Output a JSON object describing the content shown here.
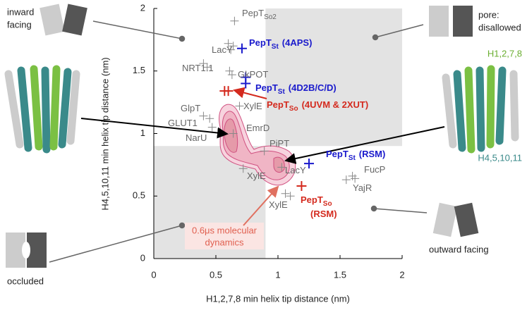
{
  "chart_data": {
    "type": "scatter",
    "xlabel": "H1,2,7,8 min helix tip distance (nm)",
    "ylabel": "H4,5,10,11 min helix tip distance (nm)",
    "xlim": [
      0,
      2
    ],
    "ylim": [
      0,
      2
    ],
    "xticks": [
      0,
      0.5,
      1,
      1.5,
      2
    ],
    "yticks": [
      0,
      0.5,
      1,
      1.5,
      2
    ],
    "shaded_regions": [
      {
        "x": [
          0.9,
          2
        ],
        "y": [
          0.9,
          2
        ]
      },
      {
        "x": [
          0,
          0.9
        ],
        "y": [
          0,
          0.9
        ]
      }
    ],
    "series": [
      {
        "color": "#888888",
        "x": [
          0.65,
          0.6,
          0.64,
          0.62,
          0.4,
          0.43,
          0.61,
          0.63,
          0.4,
          0.45,
          0.47,
          0.69,
          0.64,
          0.89,
          1.03,
          0.72,
          1.06,
          1.1,
          1.6,
          1.62,
          1.55
        ],
        "y": [
          1.9,
          1.72,
          1.7,
          1.67,
          1.56,
          1.53,
          1.5,
          1.47,
          1.14,
          1.12,
          1.05,
          1.22,
          1.0,
          0.86,
          0.73,
          0.72,
          0.52,
          0.5,
          0.66,
          0.64,
          0.63
        ]
      },
      {
        "color": "#1a1acc",
        "x": [
          0.71,
          0.74,
          0.74,
          1.25
        ],
        "y": [
          1.68,
          1.45,
          1.4,
          0.76
        ]
      },
      {
        "color": "#d42a1e",
        "x": [
          0.57,
          0.6,
          1.19
        ],
        "y": [
          1.34,
          1.34,
          0.58
        ]
      }
    ],
    "point_labels": [
      {
        "text": "PepT",
        "sub": "So2"
      },
      {
        "text": "LacY"
      },
      {
        "text": "NRT1.1"
      },
      {
        "text": "GkPOT"
      },
      {
        "text": "GlpT"
      },
      {
        "text": "GLUT1"
      },
      {
        "text": "NarU"
      },
      {
        "text": "XylE"
      },
      {
        "text": "EmrD"
      },
      {
        "text": "PiPT"
      },
      {
        "text": "LacY"
      },
      {
        "text": "XylE"
      },
      {
        "text": "XylE"
      },
      {
        "text": "FucP"
      },
      {
        "text": "YajR"
      }
    ],
    "highlight_labels": [
      {
        "text": "PepT",
        "sub": "St",
        "rest": "(4APS)",
        "color": "#1a1acc"
      },
      {
        "text": "PepT",
        "sub": "St",
        "rest": "(4D2B/C/D)",
        "color": "#1a1acc"
      },
      {
        "text": "PepT",
        "sub": "So",
        "rest": "(4UVM & 2XUT)",
        "color": "#d42a1e"
      },
      {
        "text": "PepT",
        "sub": "St",
        "rest": "(RSM)",
        "color": "#1a1acc"
      },
      {
        "text": "PepT",
        "sub": "So",
        "rest": "(RSM)",
        "color": "#d42a1e"
      }
    ],
    "annotations": {
      "inward": [
        "inward",
        "facing"
      ],
      "pore": [
        "pore:",
        "disallowed"
      ],
      "occluded": "occluded",
      "outward": "outward facing",
      "md": [
        "0.6μs molecular",
        "dynamics"
      ],
      "helix_a": "H1,2,7,8",
      "helix_b": "H4,5,10,11"
    }
  }
}
